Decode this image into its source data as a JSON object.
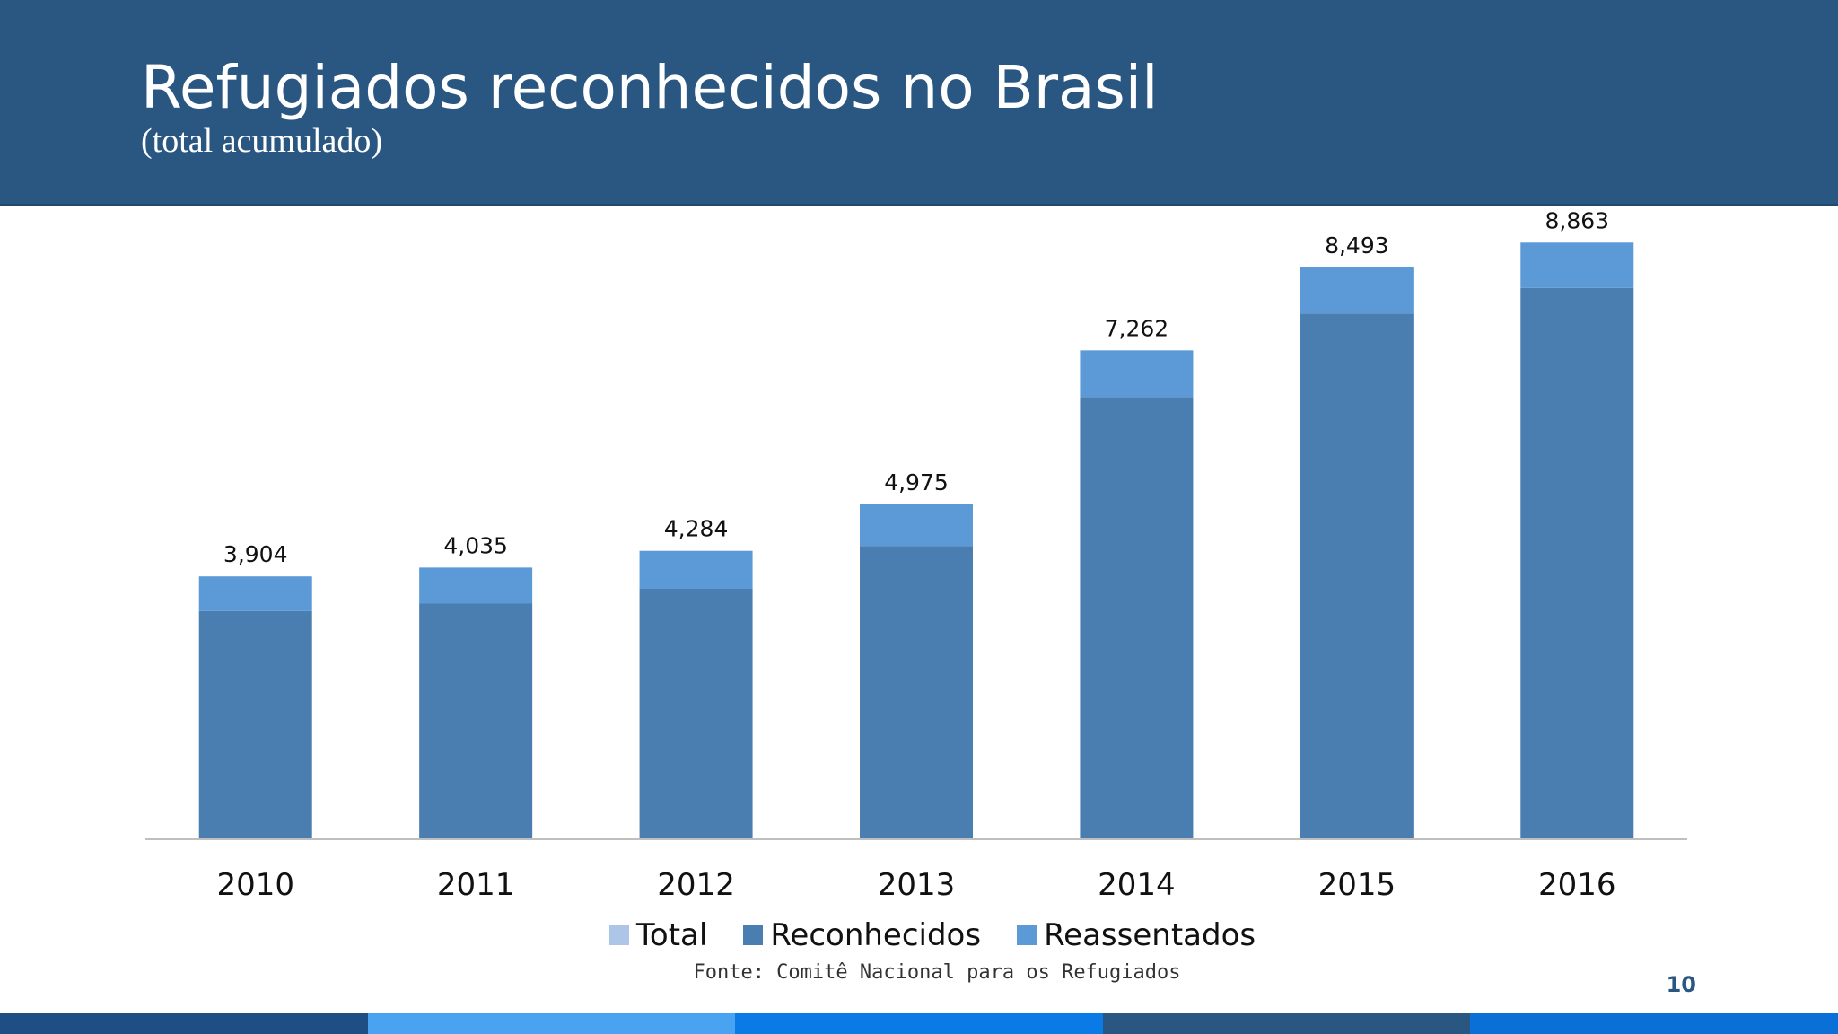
{
  "slide": {
    "title": "Refugiados reconhecidos no Brasil",
    "subtitle": "(total acumulado)",
    "source": "Fonte: Comitê Nacional para os Refugiados",
    "page_number": "10"
  },
  "colors": {
    "header": "#2a5782",
    "total": "#adc5e6",
    "reconhecidos": "#4a7eb0",
    "reassentados": "#5b9ad6",
    "footer": [
      "#1f4e85",
      "#4aa3f0",
      "#0a7ae6",
      "#2a5782",
      "#0a6fd6"
    ]
  },
  "chart_data": {
    "type": "bar",
    "stacked": true,
    "categories": [
      "2010",
      "2011",
      "2012",
      "2013",
      "2014",
      "2015",
      "2016"
    ],
    "series": [
      {
        "name": "Total",
        "values": [
          3904,
          4035,
          4284,
          4975,
          7262,
          8493,
          8863
        ]
      },
      {
        "name": "Reconhecidos",
        "values": [
          3390,
          3500,
          3720,
          4355,
          6570,
          7810,
          8190
        ]
      },
      {
        "name": "Reassentados",
        "values": [
          514,
          535,
          564,
          620,
          692,
          683,
          673
        ]
      }
    ],
    "data_labels": [
      "3,904",
      "4,035",
      "4,284",
      "4,975",
      "7,262",
      "8,493",
      "8,863"
    ],
    "ylim": [
      0,
      9000
    ],
    "grid": false,
    "legend": "bottom"
  }
}
